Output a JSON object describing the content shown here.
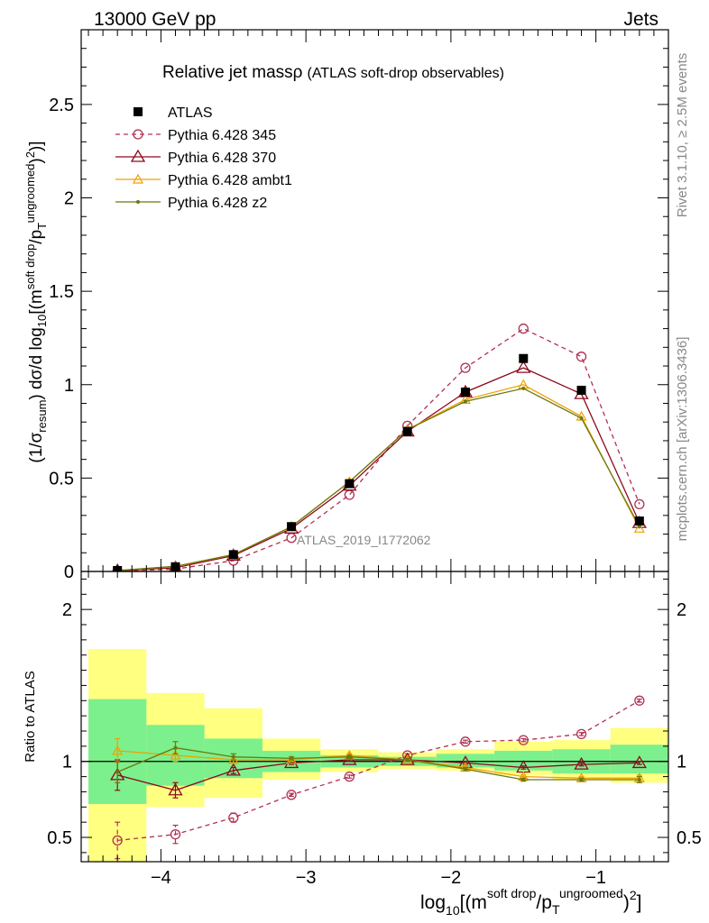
{
  "header": {
    "left": "13000 GeV pp",
    "right": "Jets",
    "side_top": "Rivet 3.1.10, ≥ 2.5M events",
    "side_bottom": "mcplots.cern.ch [arXiv:1306.3436]"
  },
  "colors": {
    "atlas": "#000000",
    "p345": "#b03050",
    "p370": "#8b0a1e",
    "ambt1": "#f0a000",
    "z2": "#6b7a10",
    "band_inner": "#7cf08c",
    "band_outer": "#ffff80"
  },
  "chart_data": [
    {
      "type": "line",
      "title": "Relative jet massρ",
      "subtitle": "(ATLAS soft-drop observables)",
      "ylabel": "(1/σresum) dσ/d log10[(m^soft drop / pT^ungroomed)²]",
      "xlim": [
        -4.55,
        -0.5
      ],
      "ylim": [
        0,
        2.9
      ],
      "yticks": [
        "0",
        "0.5",
        "1",
        "1.5",
        "2",
        "2.5"
      ],
      "watermark": "ATLAS_2019_I1772062",
      "legend_position": "top-left",
      "x": [
        -4.3,
        -3.9,
        -3.5,
        -3.1,
        -2.7,
        -2.3,
        -1.9,
        -1.5,
        -1.1,
        -0.7
      ],
      "series": [
        {
          "name": "ATLAS",
          "values": [
            0.005,
            0.025,
            0.09,
            0.24,
            0.47,
            0.75,
            0.96,
            1.14,
            0.97,
            0.27
          ]
        },
        {
          "name": "Pythia 6.428 345",
          "values": [
            0.002,
            0.013,
            0.058,
            0.18,
            0.41,
            0.78,
            1.09,
            1.3,
            1.15,
            0.36
          ]
        },
        {
          "name": "Pythia 6.428 370",
          "values": [
            0.004,
            0.02,
            0.085,
            0.23,
            0.46,
            0.75,
            0.96,
            1.09,
            0.95,
            0.26
          ]
        },
        {
          "name": "Pythia 6.428 ambt1",
          "values": [
            0.006,
            0.026,
            0.09,
            0.24,
            0.48,
            0.76,
            0.92,
            1.0,
            0.83,
            0.23
          ]
        },
        {
          "name": "Pythia 6.428 z2",
          "values": [
            0.005,
            0.028,
            0.09,
            0.24,
            0.48,
            0.76,
            0.91,
            0.98,
            0.82,
            0.24
          ]
        }
      ]
    },
    {
      "type": "line",
      "ylabel": "Ratio to ATLAS",
      "xlabel": "log10[(m^soft drop / pT^ungroomed)²]",
      "xlim": [
        -4.55,
        -0.5
      ],
      "ylim": [
        0.34,
        2.25
      ],
      "yticks": [
        "0.5",
        "1",
        "2"
      ],
      "xticks": [
        "−4",
        "−3",
        "−2",
        "−1"
      ],
      "bin_edges": [
        -4.5,
        -4.1,
        -3.7,
        -3.3,
        -2.9,
        -2.5,
        -2.1,
        -1.7,
        -1.3,
        -0.9,
        -0.5
      ],
      "band_inner": [
        [
          0.72,
          1.41
        ],
        [
          0.84,
          1.24
        ],
        [
          0.89,
          1.15
        ],
        [
          0.93,
          1.07
        ],
        [
          0.96,
          1.04
        ],
        [
          0.97,
          1.03
        ],
        [
          0.96,
          1.05
        ],
        [
          0.94,
          1.07
        ],
        [
          0.92,
          1.08
        ],
        [
          0.92,
          1.11
        ]
      ],
      "band_outer": [
        [
          0.34,
          1.74
        ],
        [
          0.7,
          1.45
        ],
        [
          0.76,
          1.35
        ],
        [
          0.88,
          1.15
        ],
        [
          0.93,
          1.08
        ],
        [
          0.95,
          1.06
        ],
        [
          0.94,
          1.08
        ],
        [
          0.91,
          1.13
        ],
        [
          0.88,
          1.14
        ],
        [
          0.86,
          1.22
        ]
      ],
      "x": [
        -4.3,
        -3.9,
        -3.5,
        -3.1,
        -2.7,
        -2.3,
        -1.9,
        -1.5,
        -1.1,
        -0.7
      ],
      "series": [
        {
          "name": "Pythia 6.428 345",
          "values": [
            0.48,
            0.52,
            0.63,
            0.78,
            0.9,
            1.04,
            1.13,
            1.14,
            1.18,
            1.4
          ],
          "errors": [
            0.12,
            0.06,
            0.03,
            0.01,
            0.01,
            0.01,
            0.01,
            0.01,
            0.01,
            0.01
          ]
        },
        {
          "name": "Pythia 6.428 370",
          "values": [
            0.91,
            0.81,
            0.94,
            0.99,
            1.01,
            1.01,
            0.99,
            0.96,
            0.98,
            0.99
          ],
          "errors": [
            0.1,
            0.05,
            0.02,
            0.01,
            0.01,
            0.01,
            0.01,
            0.01,
            0.01,
            0.01
          ]
        },
        {
          "name": "Pythia 6.428 ambt1",
          "values": [
            1.07,
            1.04,
            1.01,
            1.01,
            1.04,
            1.01,
            0.96,
            0.9,
            0.89,
            0.89
          ],
          "errors": [
            0.08,
            0.04,
            0.02,
            0.01,
            0.01,
            0.01,
            0.01,
            0.01,
            0.01,
            0.02
          ]
        },
        {
          "name": "Pythia 6.428 z2",
          "values": [
            0.93,
            1.09,
            1.03,
            1.02,
            1.03,
            1.01,
            0.95,
            0.88,
            0.88,
            0.88
          ],
          "errors": [
            0.07,
            0.04,
            0.02,
            0.01,
            0.01,
            0.01,
            0.01,
            0.01,
            0.01,
            0.02
          ]
        }
      ]
    }
  ]
}
